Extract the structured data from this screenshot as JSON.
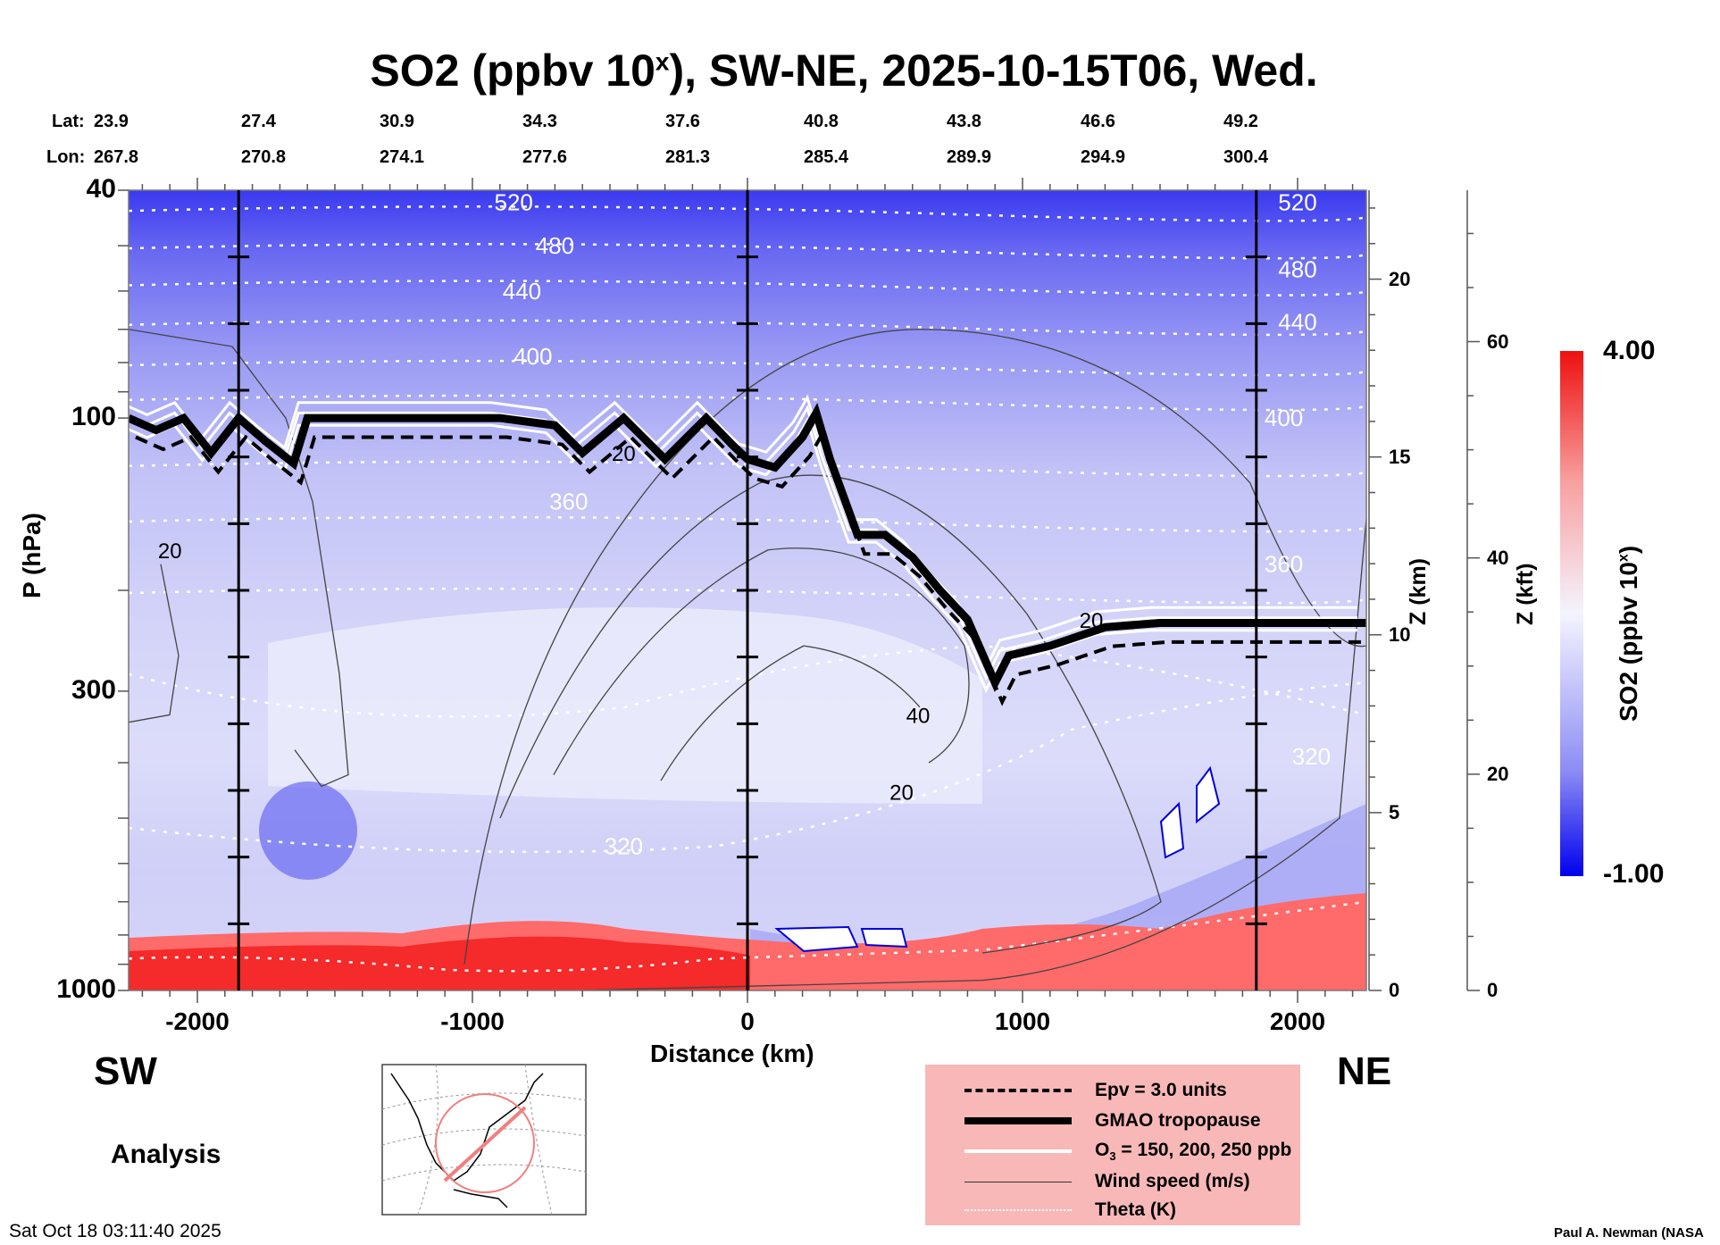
{
  "chart_data": {
    "type": "heatmap",
    "title_main": "SO2 (ppbv 10",
    "title_sup": "x",
    "title_rest": "), SW-NE, 2025-10-15T06, Wed.",
    "xlabel": "Distance (km)",
    "ylabel": "P (hPa)",
    "y2label": "Z (km)",
    "y3label": "Z (kft)",
    "xlim": [
      -2250,
      2250
    ],
    "ylim_hpa": [
      1000,
      40
    ],
    "x_ticks": [
      -2000,
      -1000,
      0,
      1000,
      2000
    ],
    "x_tick_labels": [
      "-2000",
      "-1000",
      "0",
      "1000",
      "2000"
    ],
    "y_ticks": [
      40,
      100,
      300,
      1000
    ],
    "y_tick_labels": [
      "40",
      "100",
      "300",
      "1000"
    ],
    "z_km_ticks": [
      0,
      5,
      10,
      15,
      20
    ],
    "z_kft_ticks": [
      0,
      20,
      40,
      60
    ],
    "lat_label": "Lat:",
    "lon_label": "Lon:",
    "lat": [
      "23.9",
      "27.4",
      "30.9",
      "34.3",
      "37.6",
      "40.8",
      "43.8",
      "46.6",
      "49.2"
    ],
    "lon": [
      "267.8",
      "270.8",
      "274.1",
      "277.6",
      "281.3",
      "285.4",
      "289.9",
      "294.9",
      "300.4"
    ],
    "direction_left": "SW",
    "direction_right": "NE",
    "colorbar": {
      "title_main": "SO2 (ppbv 10",
      "title_sup": "x",
      "title_rest": ")",
      "max_label": "4.00",
      "min_label": "-1.00",
      "range": [
        -1.0,
        4.0
      ],
      "colors": [
        "#0000ff",
        "#ffffff",
        "#ff0000"
      ]
    },
    "theta_labels": [
      {
        "value": "520",
        "x_km": -850,
        "p": 42
      },
      {
        "value": "520",
        "x_km": 2000,
        "p": 42
      },
      {
        "value": "480",
        "x_km": -700,
        "p": 50
      },
      {
        "value": "480",
        "x_km": 2000,
        "p": 55
      },
      {
        "value": "440",
        "x_km": -820,
        "p": 60
      },
      {
        "value": "440",
        "x_km": 2000,
        "p": 68
      },
      {
        "value": "400",
        "x_km": -780,
        "p": 78
      },
      {
        "value": "400",
        "x_km": 1950,
        "p": 100
      },
      {
        "value": "360",
        "x_km": -650,
        "p": 140
      },
      {
        "value": "360",
        "x_km": 1950,
        "p": 180
      },
      {
        "value": "320",
        "x_km": -450,
        "p": 560
      },
      {
        "value": "320",
        "x_km": 2050,
        "p": 390
      }
    ],
    "wind_labels": [
      {
        "value": "20",
        "x_km": -2100,
        "p": 170
      },
      {
        "value": "20",
        "x_km": -450,
        "p": 115
      },
      {
        "value": "40",
        "x_km": 620,
        "p": 330
      },
      {
        "value": "20",
        "x_km": 560,
        "p": 450
      },
      {
        "value": "20",
        "x_km": 1250,
        "p": 225
      }
    ],
    "tropopause_km": [
      [
        -2250,
        100
      ],
      [
        -2150,
        105
      ],
      [
        -2050,
        100
      ],
      [
        -1950,
        115
      ],
      [
        -1850,
        100
      ],
      [
        -1750,
        110
      ],
      [
        -1650,
        120
      ],
      [
        -1600,
        100
      ],
      [
        -1300,
        100
      ],
      [
        -900,
        100
      ],
      [
        -700,
        103
      ],
      [
        -600,
        115
      ],
      [
        -450,
        100
      ],
      [
        -300,
        118
      ],
      [
        -150,
        100
      ],
      [
        -50,
        112
      ],
      [
        0,
        118
      ],
      [
        100,
        122
      ],
      [
        200,
        108
      ],
      [
        250,
        98
      ],
      [
        300,
        118
      ],
      [
        400,
        160
      ],
      [
        500,
        160
      ],
      [
        600,
        175
      ],
      [
        700,
        200
      ],
      [
        800,
        225
      ],
      [
        900,
        290
      ],
      [
        950,
        260
      ],
      [
        1100,
        250
      ],
      [
        1300,
        232
      ],
      [
        1500,
        228
      ],
      [
        1800,
        228
      ],
      [
        2250,
        228
      ]
    ],
    "legend": [
      {
        "style": "dashed",
        "label": "Epv = 3.0 units"
      },
      {
        "style": "thick",
        "label": "GMAO tropopause"
      },
      {
        "style": "white",
        "label": "O",
        "sub": "3",
        "rest": " = 150, 200, 250 ppb"
      },
      {
        "style": "thin",
        "label": "Wind speed (m/s)"
      },
      {
        "style": "dotted",
        "label": "Theta (K)"
      }
    ]
  },
  "footer": {
    "analysis_label": "Analysis",
    "timestamp": "Sat Oct 18 03:11:40 2025",
    "credit": "Paul A. Newman (NASA"
  }
}
